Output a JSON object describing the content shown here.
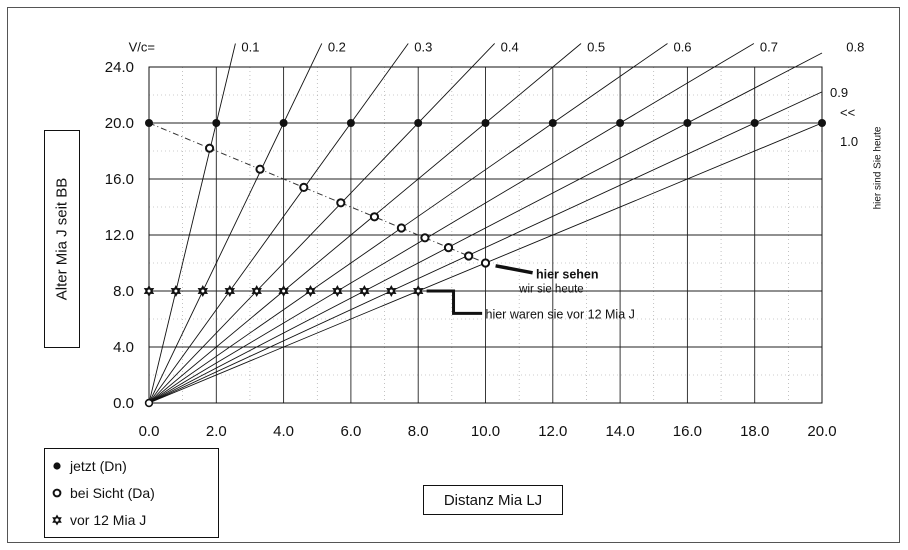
{
  "chart_data": {
    "type": "scatter",
    "xlabel": "Distanz Mia LJ",
    "ylabel": "Alter Mia J seit BB",
    "xlim": [
      0,
      20
    ],
    "ylim": [
      0,
      24
    ],
    "x_ticks": [
      "0.0",
      "2.0",
      "4.0",
      "6.0",
      "8.0",
      "10.0",
      "12.0",
      "14.0",
      "16.0",
      "18.0",
      "20.0"
    ],
    "y_ticks": [
      "0.0",
      "4.0",
      "8.0",
      "12.0",
      "16.0",
      "20.0",
      "24.0"
    ],
    "grid": true,
    "rays": {
      "prefix": "V/c=",
      "labels": [
        "0.1",
        "0.2",
        "0.3",
        "0.4",
        "0.5",
        "0.6",
        "0.7",
        "0.8",
        "0.9",
        "1.0"
      ],
      "v": [
        0.1,
        0.2,
        0.3,
        0.4,
        0.5,
        0.6,
        0.7,
        0.8,
        0.9,
        1.0
      ]
    },
    "series": [
      {
        "name": "jetzt (Dn)",
        "marker": "filled-circle",
        "x": [
          0,
          2,
          4,
          6,
          8,
          10,
          12,
          14,
          16,
          18,
          20
        ],
        "y": [
          20,
          20,
          20,
          20,
          20,
          20,
          20,
          20,
          20,
          20,
          20
        ]
      },
      {
        "name": "bei Sicht (Da)",
        "marker": "open-circle",
        "connected": true,
        "x": [
          0,
          1.8,
          3.3,
          4.6,
          5.7,
          6.7,
          7.5,
          8.2,
          8.9,
          9.5,
          10.0
        ],
        "y": [
          20,
          18.2,
          16.7,
          15.4,
          14.3,
          13.3,
          12.5,
          11.8,
          11.1,
          10.5,
          10.0
        ]
      },
      {
        "name": "vor 12 Mia J",
        "marker": "star",
        "x": [
          0,
          0.8,
          1.6,
          2.4,
          3.2,
          4.0,
          4.8,
          5.6,
          6.4,
          7.2,
          8.0
        ],
        "y": [
          8,
          8,
          8,
          8,
          8,
          8,
          8,
          8,
          8,
          8,
          8
        ]
      }
    ],
    "annotations": {
      "see_today": "hier sehen",
      "see_today_line2": "wir sie heute",
      "were_ago": "hier waren sie vor 12 Mia J",
      "arrow": "<<",
      "are_today": "hier sind Sie heute"
    },
    "legend_placement": "bottom-left"
  }
}
